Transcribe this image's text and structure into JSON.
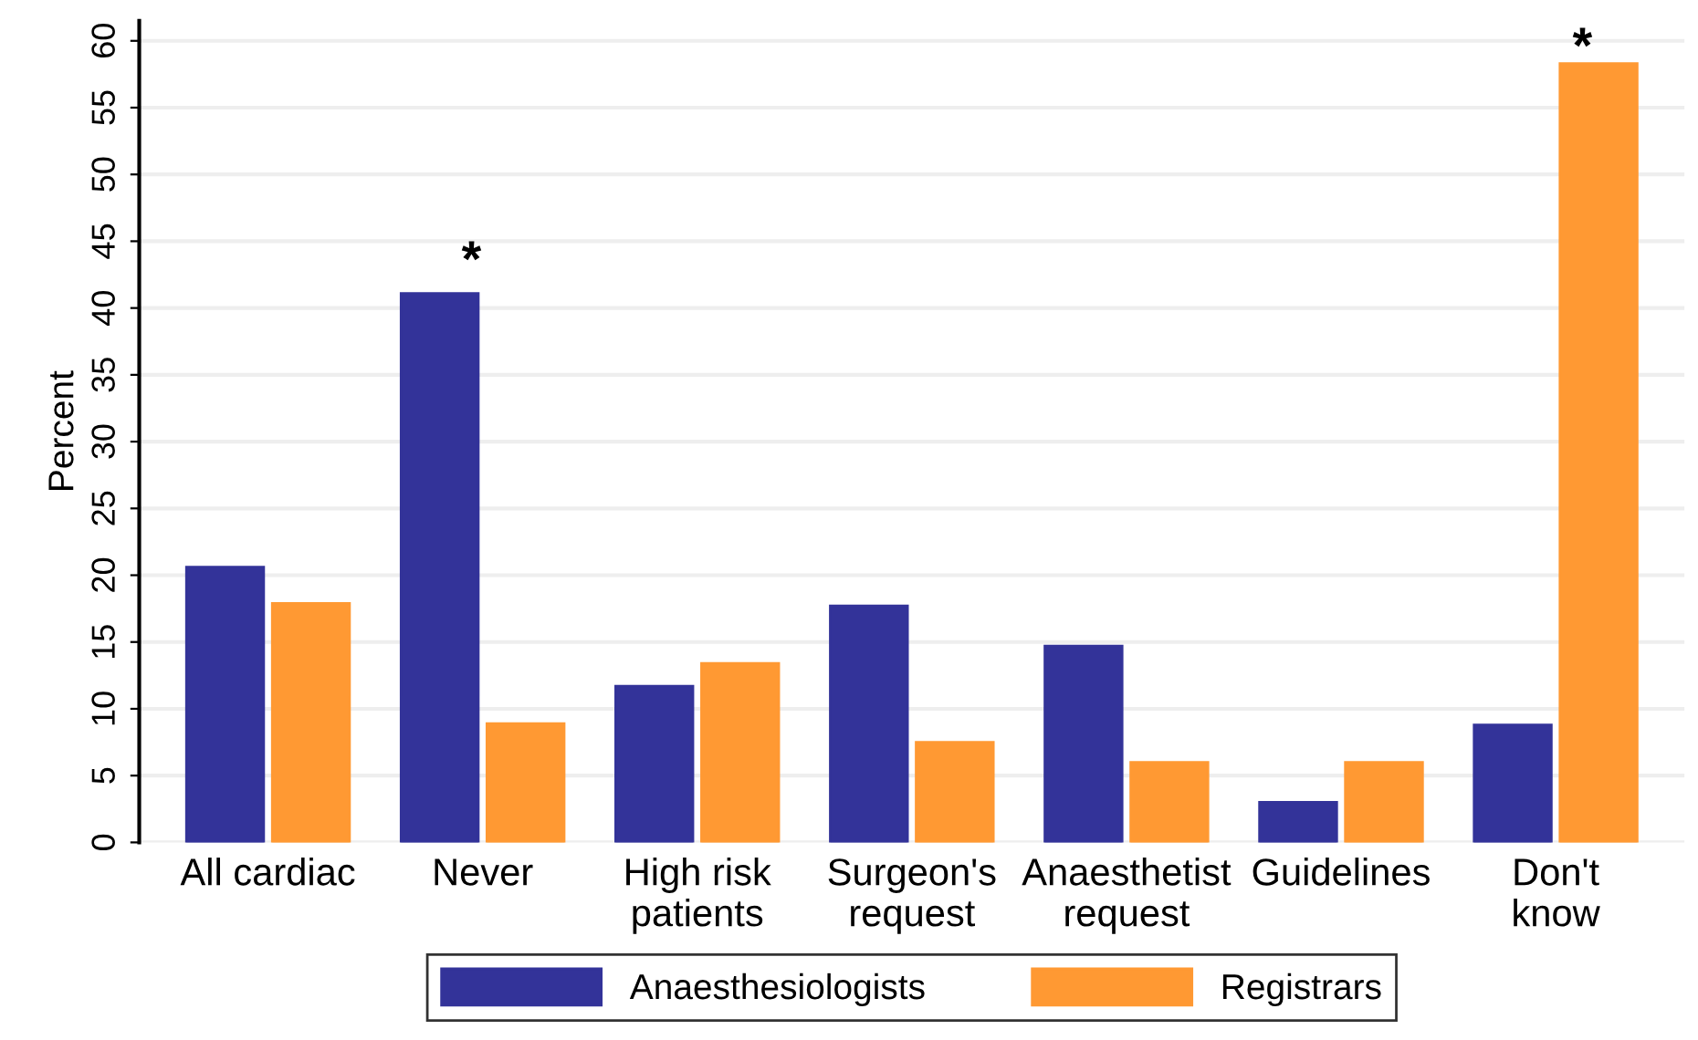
{
  "chart_data": {
    "type": "bar",
    "ylabel": "Percent",
    "categories": [
      "All cardiac",
      "Never",
      "High risk\npatients",
      "Surgeon's\nrequest",
      "Anaesthetist\nrequest",
      "Guidelines",
      "Don't\nknow"
    ],
    "series": [
      {
        "name": "Anaesthesiologists",
        "color": "#333399",
        "values": [
          20.6,
          41.1,
          11.7,
          17.7,
          14.7,
          3.0,
          8.8
        ]
      },
      {
        "name": "Registrars",
        "color": "#ff9933",
        "values": [
          17.9,
          8.9,
          13.4,
          7.5,
          6.0,
          6.0,
          58.3
        ]
      }
    ],
    "ylim": [
      0,
      61.5
    ],
    "yticks": [
      0,
      5,
      10,
      15,
      20,
      25,
      30,
      35,
      40,
      45,
      50,
      55,
      60
    ],
    "grid": "y",
    "legend": "bottom",
    "annotations": [
      "*",
      "*"
    ]
  }
}
